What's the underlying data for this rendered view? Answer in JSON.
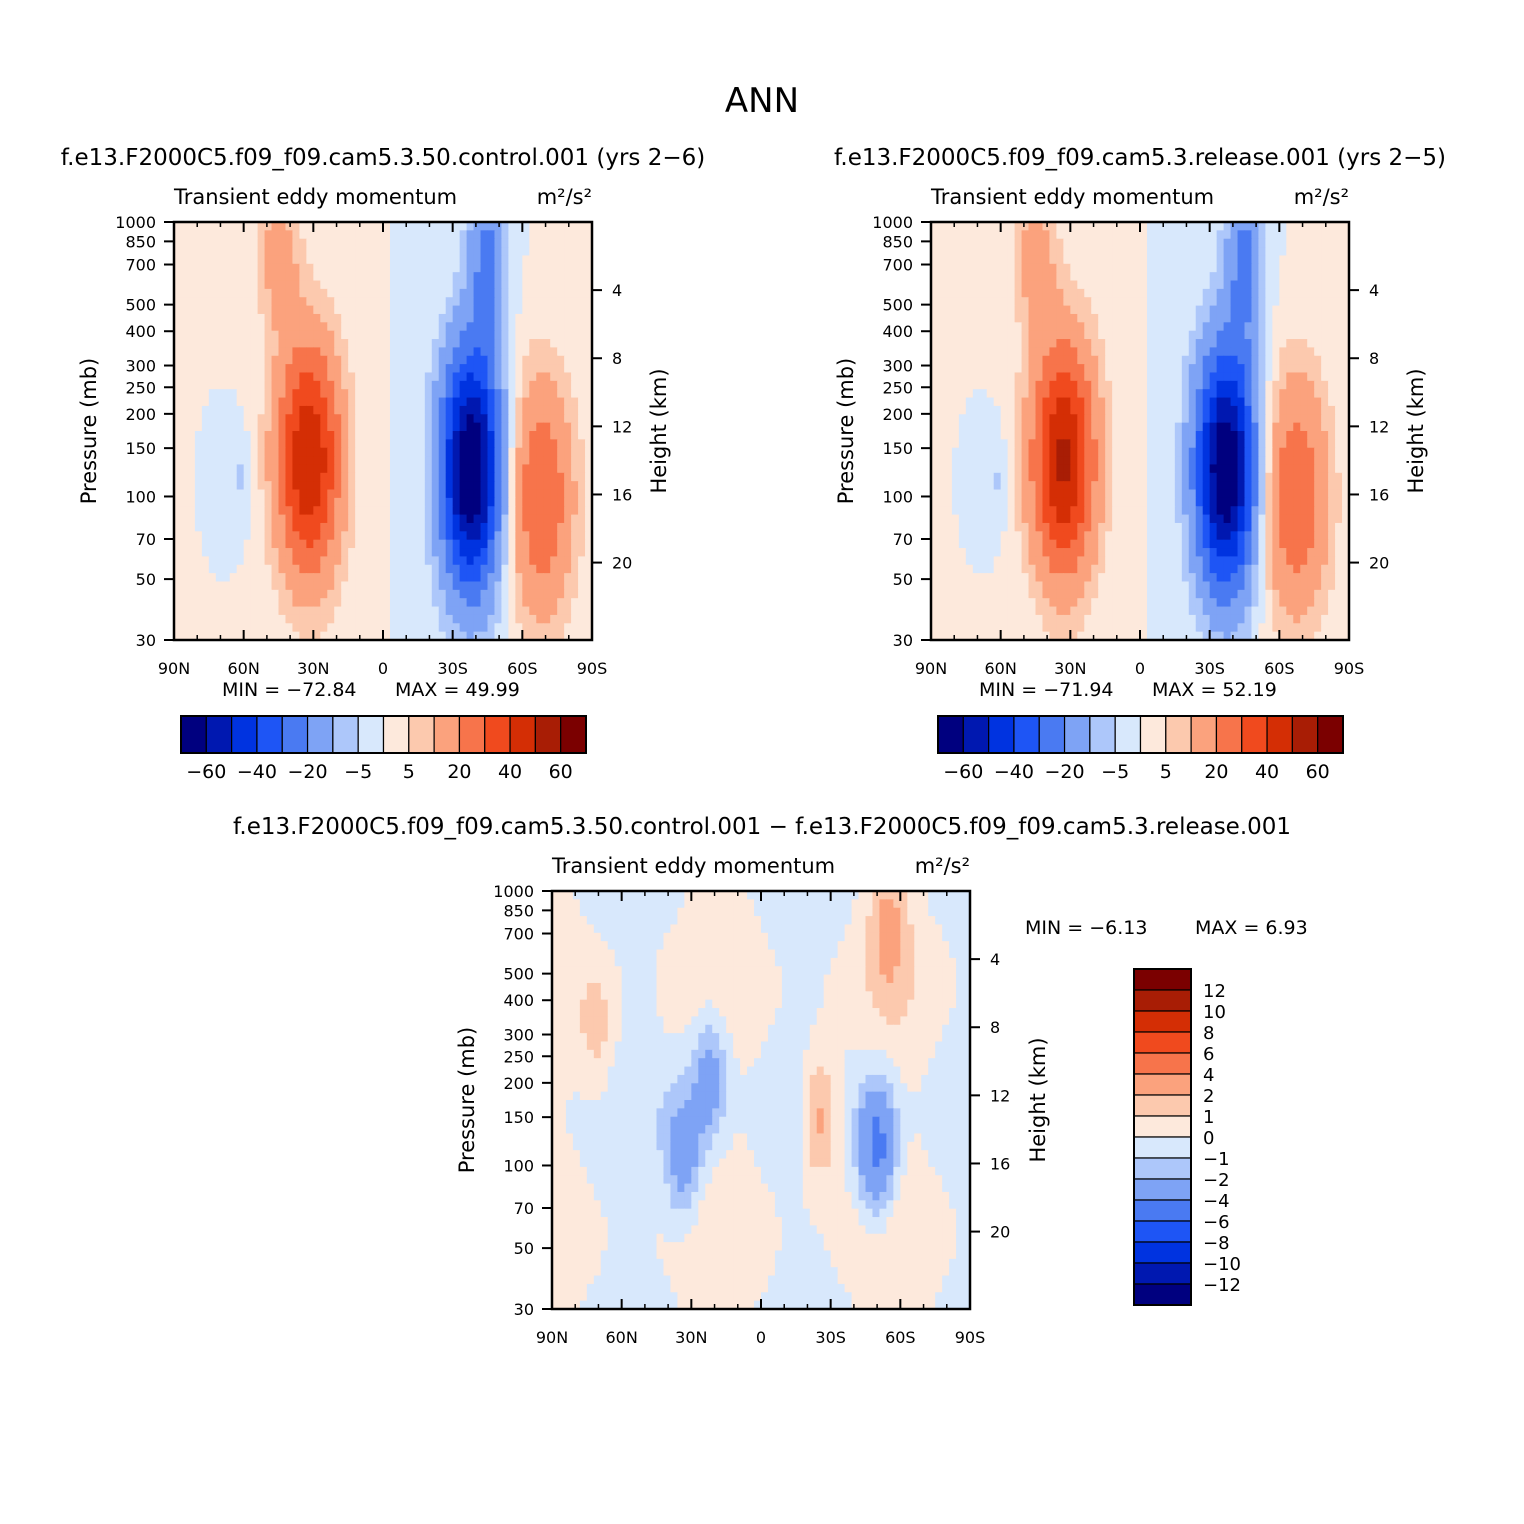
{
  "figure": {
    "title": "ANN"
  },
  "colors": {
    "scale": [
      "#00007f",
      "#0018b0",
      "#0033e0",
      "#1e55f5",
      "#4a7af2",
      "#7ea3f5",
      "#adc7fa",
      "#d8e8fc",
      "#fde9dc",
      "#fcc9ae",
      "#fba27d",
      "#f7744b",
      "#f04a1e",
      "#d42e05",
      "#a81d05",
      "#7b0000"
    ]
  },
  "chart_data": [
    {
      "type": "heatmap",
      "panel": "control",
      "case_title": "f.e13.F2000C5.f09_f09.cam5.3.50.control.001  (yrs  2−6)",
      "variable": "Transient  eddy  momentum",
      "units": "m²/s²",
      "xlabel": "",
      "ylabel": "Pressure  (mb)",
      "y2label": "Height  (km)",
      "x_ticks": [
        "90N",
        "60N",
        "30N",
        "0",
        "30S",
        "60S",
        "90S"
      ],
      "y_ticks": [
        30,
        50,
        70,
        100,
        150,
        200,
        250,
        300,
        400,
        500,
        700,
        850,
        1000
      ],
      "y2_ticks": [
        4,
        8,
        12,
        16,
        20
      ],
      "ylim": [
        1000,
        30
      ],
      "min_label": "MIN  =  −72.84",
      "max_label": "MAX  =    49.99",
      "min": -72.84,
      "max": 49.99,
      "colorbar_labels": [
        "−60",
        "−40",
        "−20",
        "−5",
        "5",
        "20",
        "40",
        "60"
      ],
      "features": [
        {
          "lat": 32,
          "p": 220,
          "value": 49.99
        },
        {
          "lat": -38,
          "p": 240,
          "value": -72.84
        },
        {
          "lat": -68,
          "p": 300,
          "value": 30
        }
      ]
    },
    {
      "type": "heatmap",
      "panel": "release",
      "case_title": "f.e13.F2000C5.f09_f09.cam5.3.release.001  (yrs  2−5)",
      "variable": "Transient  eddy  momentum",
      "units": "m²/s²",
      "xlabel": "",
      "ylabel": "Pressure  (mb)",
      "y2label": "Height  (km)",
      "x_ticks": [
        "90N",
        "60N",
        "30N",
        "0",
        "30S",
        "60S",
        "90S"
      ],
      "y_ticks": [
        30,
        50,
        70,
        100,
        150,
        200,
        250,
        300,
        400,
        500,
        700,
        850,
        1000
      ],
      "y2_ticks": [
        4,
        8,
        12,
        16,
        20
      ],
      "ylim": [
        1000,
        30
      ],
      "min_label": "MIN  =  −71.94",
      "max_label": "MAX  =    52.19",
      "min": -71.94,
      "max": 52.19,
      "colorbar_labels": [
        "−60",
        "−40",
        "−20",
        "−5",
        "5",
        "20",
        "40",
        "60"
      ],
      "features": [
        {
          "lat": 33,
          "p": 220,
          "value": 52.19
        },
        {
          "lat": -37,
          "p": 240,
          "value": -71.94
        },
        {
          "lat": -67,
          "p": 300,
          "value": 30
        }
      ]
    },
    {
      "type": "heatmap",
      "panel": "difference",
      "case_title": "f.e13.F2000C5.f09_f09.cam5.3.50.control.001  −  f.e13.F2000C5.f09_f09.cam5.3.release.001",
      "variable": "Transient  eddy  momentum",
      "units": "m²/s²",
      "xlabel": "",
      "ylabel": "Pressure  (mb)",
      "y2label": "Height  (km)",
      "x_ticks": [
        "90N",
        "60N",
        "30N",
        "0",
        "30S",
        "60S",
        "90S"
      ],
      "y_ticks": [
        30,
        50,
        70,
        100,
        150,
        200,
        250,
        300,
        400,
        500,
        700,
        850,
        1000
      ],
      "y2_ticks": [
        4,
        8,
        12,
        16,
        20
      ],
      "ylim": [
        1000,
        30
      ],
      "min_label": "MIN  =    −6.13",
      "max_label": "MAX  =      6.93",
      "min": -6.13,
      "max": 6.93,
      "colorbar_labels": [
        "12",
        "10",
        "8",
        "6",
        "4",
        "2",
        "1",
        "0",
        "−1",
        "−2",
        "−4",
        "−6",
        "−8",
        "−10",
        "−12"
      ],
      "features": [
        {
          "lat": 33,
          "p": 280,
          "value": -3
        },
        {
          "lat": 22,
          "p": 140,
          "value": -3
        },
        {
          "lat": -25,
          "p": 200,
          "value": 3
        },
        {
          "lat": -50,
          "p": 260,
          "value": -5
        },
        {
          "lat": 70,
          "p": 100,
          "value": 1.5
        },
        {
          "lat": -55,
          "p": 40,
          "value": 2
        }
      ]
    }
  ]
}
